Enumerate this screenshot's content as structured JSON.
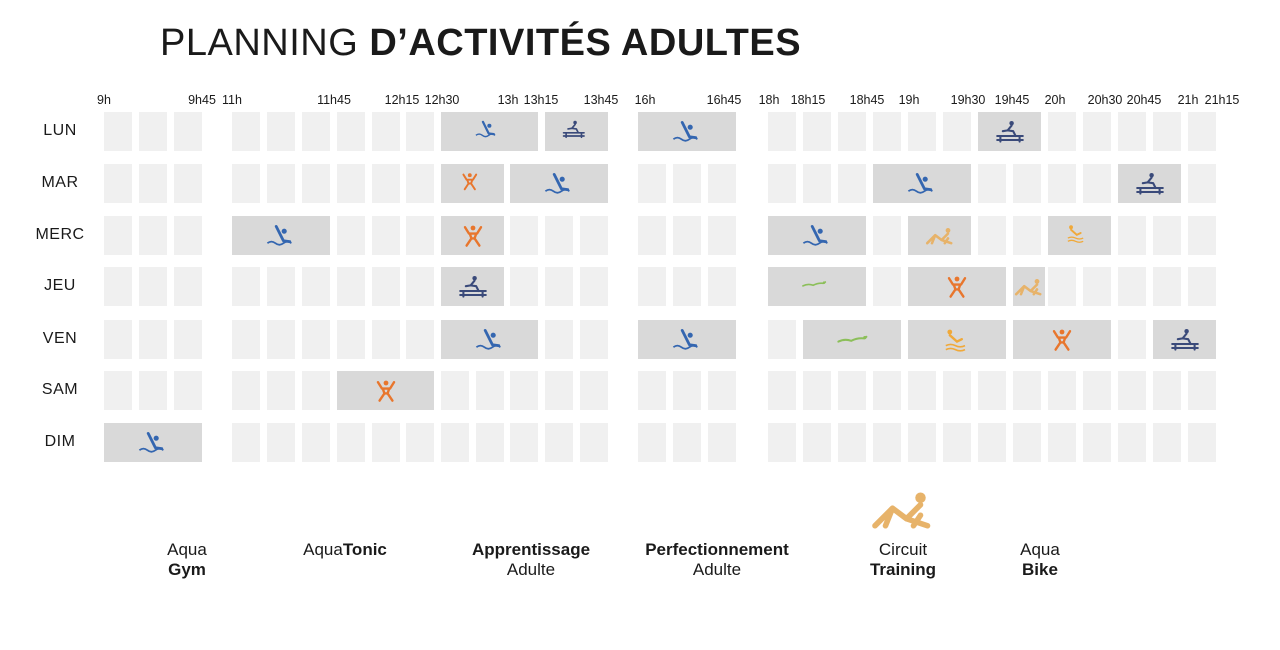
{
  "title": {
    "light": "PLANNING ",
    "bold": "D’ACTIVITÉS ADULTES"
  },
  "times": [
    "9h",
    "9h45",
    "11h",
    "11h45",
    "12h15",
    "12h30",
    "13h",
    "13h15",
    "13h45",
    "16h",
    "16h45",
    "18h",
    "18h15",
    "18h45",
    "19h",
    "19h30",
    "19h45",
    "20h",
    "20h30",
    "20h45",
    "21h",
    "21h15"
  ],
  "days": [
    "LUN",
    "MAR",
    "MERC",
    "JEU",
    "VEN",
    "SAM",
    "DIM"
  ],
  "colors": {
    "aquagym": "#3466b0",
    "aquatonic": "#e8762d",
    "apprentissage": "#8cbf5a",
    "perfectionnement": "#f0a93a",
    "circuit": "#e7b36a",
    "aquabike": "#3a4a7a",
    "cell": "#f0f0f0",
    "block": "#d9d9d9"
  },
  "schedule": [
    {
      "day": "LUN",
      "start": "12h30",
      "end": "13h15",
      "activity": "aquagym"
    },
    {
      "day": "LUN",
      "start": "13h15",
      "end": "13h45",
      "activity": "aquabike"
    },
    {
      "day": "LUN",
      "start": "16h",
      "end": "16h45",
      "activity": "aquagym"
    },
    {
      "day": "LUN",
      "start": "19h30",
      "end": "20h",
      "activity": "aquabike"
    },
    {
      "day": "MAR",
      "start": "12h30",
      "end": "13h",
      "activity": "aquatonic"
    },
    {
      "day": "MAR",
      "start": "13h",
      "end": "13h45",
      "activity": "aquagym"
    },
    {
      "day": "MAR",
      "start": "18h45",
      "end": "19h30",
      "activity": "aquagym"
    },
    {
      "day": "MAR",
      "start": "20h30",
      "end": "21h",
      "activity": "aquabike"
    },
    {
      "day": "MERC",
      "start": "11h",
      "end": "11h45",
      "activity": "aquagym"
    },
    {
      "day": "MERC",
      "start": "12h30",
      "end": "13h",
      "activity": "aquatonic"
    },
    {
      "day": "MERC",
      "start": "18h",
      "end": "18h45",
      "activity": "aquagym"
    },
    {
      "day": "MERC",
      "start": "19h",
      "end": "19h30",
      "activity": "circuit"
    },
    {
      "day": "MERC",
      "start": "20h",
      "end": "20h30",
      "activity": "perfectionnement"
    },
    {
      "day": "JEU",
      "start": "12h30",
      "end": "13h",
      "activity": "aquabike"
    },
    {
      "day": "JEU",
      "start": "18h",
      "end": "18h45",
      "activity": "apprentissage"
    },
    {
      "day": "JEU",
      "start": "19h",
      "end": "19h45",
      "activity": "aquatonic"
    },
    {
      "day": "JEU",
      "start": "19h45",
      "end": "20h15",
      "activity": "circuit"
    },
    {
      "day": "VEN",
      "start": "12h30",
      "end": "13h15",
      "activity": "aquagym"
    },
    {
      "day": "VEN",
      "start": "16h",
      "end": "16h45",
      "activity": "aquagym"
    },
    {
      "day": "VEN",
      "start": "18h15",
      "end": "19h",
      "activity": "apprentissage"
    },
    {
      "day": "VEN",
      "start": "19h",
      "end": "19h45",
      "activity": "perfectionnement"
    },
    {
      "day": "VEN",
      "start": "19h45",
      "end": "20h30",
      "activity": "aquatonic"
    },
    {
      "day": "VEN",
      "start": "20h45",
      "end": "21h15",
      "activity": "aquabike"
    },
    {
      "day": "SAM",
      "start": "11h45",
      "end": "12h30",
      "activity": "aquatonic"
    },
    {
      "day": "DIM",
      "start": "9h",
      "end": "9h45",
      "activity": "aquagym"
    }
  ],
  "legend": [
    {
      "id": "aquagym",
      "icon": "aquagym-icon",
      "line1": "Aqua",
      "line2": "Gym",
      "bold_line": 2,
      "inline": false
    },
    {
      "id": "aquatonic",
      "icon": "aquatonic-icon",
      "line1": "Aqua",
      "line2": "Tonic",
      "bold_line": 2,
      "inline": true
    },
    {
      "id": "apprentissage",
      "icon": "apprentissage-icon",
      "line1": "Apprentissage",
      "line2": "Adulte",
      "bold_line": 1,
      "inline": false
    },
    {
      "id": "perfectionnement",
      "icon": "perfectionnement-icon",
      "line1": "Perfectionnement",
      "line2": "Adulte",
      "bold_line": 1,
      "inline": false
    },
    {
      "id": "circuit",
      "icon": "circuit-training-icon",
      "line1": "Circuit",
      "line2": "Training",
      "bold_line": 2,
      "inline": false
    },
    {
      "id": "aquabike",
      "icon": "aquabike-icon",
      "line1": "Aqua",
      "line2": "Bike",
      "bold_line": 2,
      "inline": false
    }
  ]
}
